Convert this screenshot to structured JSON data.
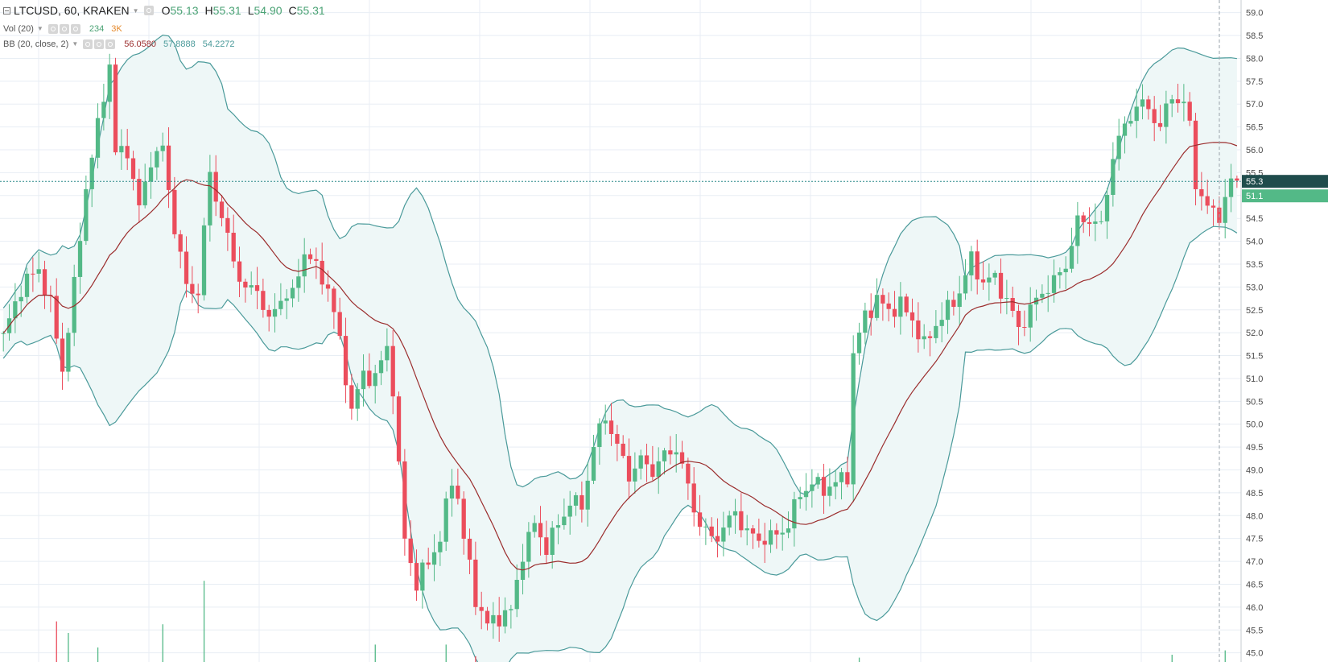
{
  "legend": {
    "symbol": "LTCUSD, 60, KRAKEN",
    "ohlc": [
      {
        "key": "O",
        "value": "55.13"
      },
      {
        "key": "H",
        "value": "55.31"
      },
      {
        "key": "L",
        "value": "54.90"
      },
      {
        "key": "C",
        "value": "55.31"
      }
    ],
    "vol_label": "Vol (20)",
    "vol_values": [
      "234",
      "3K"
    ],
    "bb_label": "BB (20, close, 2)",
    "bb_values": [
      "56.0580",
      "57.8888",
      "54.2272"
    ]
  },
  "colors": {
    "up": "#53b987",
    "down": "#eb4d5c",
    "band": "#4a9a9a",
    "basis": "#9b2d2d",
    "fill": "#eef7f7",
    "grid": "#e8eef4",
    "vol_value": "#4aa274",
    "vol_ma": "#e58a2c",
    "bb_basis_value": "#9b2d2d",
    "bb_band_value": "#4a9a9a"
  },
  "chart_data": {
    "type": "candlestick",
    "symbol": "LTCUSD",
    "interval": "60",
    "exchange": "KRAKEN",
    "y_axis": {
      "side": "right",
      "range": [
        44.8,
        59.1
      ],
      "tick_labels": [
        "59.0",
        "58.5",
        "58.0",
        "57.5",
        "57.0",
        "56.5",
        "56.0",
        "55.5",
        "55.0",
        "54.5",
        "54.0",
        "53.5",
        "53.0",
        "52.5",
        "52.0",
        "51.5",
        "51.0",
        "50.5",
        "50.0",
        "49.5",
        "49.0",
        "48.5",
        "48.0",
        "47.5",
        "47.0",
        "46.5",
        "46.0",
        "45.5",
        "45.0"
      ]
    },
    "last_price": {
      "value": 55.31,
      "label": "55.3"
    },
    "price_line_label": "51.1",
    "grid": true,
    "close_path": [
      [
        0,
        51.9
      ],
      [
        3,
        53.0
      ],
      [
        6,
        53.4
      ],
      [
        8,
        52.6
      ],
      [
        10,
        51.2
      ],
      [
        12,
        53.0
      ],
      [
        14,
        55.2
      ],
      [
        16,
        56.5
      ],
      [
        18,
        57.9
      ],
      [
        19,
        55.9
      ],
      [
        21,
        56.0
      ],
      [
        23,
        54.7
      ],
      [
        25,
        55.8
      ],
      [
        27,
        56.0
      ],
      [
        29,
        54.3
      ],
      [
        31,
        53.0
      ],
      [
        33,
        52.9
      ],
      [
        35,
        55.5
      ],
      [
        37,
        54.5
      ],
      [
        39,
        53.6
      ],
      [
        41,
        52.9
      ],
      [
        43,
        53.0
      ],
      [
        45,
        52.2
      ],
      [
        47,
        52.8
      ],
      [
        49,
        52.8
      ],
      [
        51,
        53.8
      ],
      [
        53,
        53.4
      ],
      [
        55,
        53.0
      ],
      [
        57,
        51.8
      ],
      [
        59,
        50.3
      ],
      [
        61,
        51.1
      ],
      [
        63,
        51.0
      ],
      [
        65,
        51.7
      ],
      [
        66,
        50.8
      ],
      [
        67,
        49.0
      ],
      [
        68,
        47.5
      ],
      [
        70,
        46.5
      ],
      [
        72,
        47.0
      ],
      [
        74,
        47.5
      ],
      [
        76,
        48.8
      ],
      [
        77,
        48.4
      ],
      [
        78,
        47.5
      ],
      [
        80,
        46.2
      ],
      [
        82,
        45.6
      ],
      [
        84,
        45.8
      ],
      [
        86,
        45.9
      ],
      [
        88,
        47.2
      ],
      [
        90,
        47.8
      ],
      [
        92,
        47.3
      ],
      [
        94,
        47.8
      ],
      [
        96,
        48.3
      ],
      [
        98,
        48.2
      ],
      [
        100,
        49.5
      ],
      [
        102,
        50.2
      ],
      [
        104,
        49.5
      ],
      [
        106,
        48.9
      ],
      [
        108,
        49.2
      ],
      [
        110,
        49.0
      ],
      [
        112,
        49.3
      ],
      [
        114,
        49.5
      ],
      [
        116,
        48.6
      ],
      [
        118,
        47.8
      ],
      [
        120,
        47.5
      ],
      [
        122,
        47.7
      ],
      [
        124,
        48.1
      ],
      [
        126,
        47.6
      ],
      [
        128,
        47.5
      ],
      [
        130,
        47.5
      ],
      [
        131,
        47.6
      ],
      [
        133,
        47.8
      ],
      [
        135,
        48.5
      ],
      [
        137,
        48.7
      ],
      [
        139,
        48.6
      ],
      [
        141,
        48.7
      ],
      [
        143,
        48.9
      ],
      [
        144,
        51.5
      ],
      [
        146,
        52.4
      ],
      [
        148,
        52.7
      ],
      [
        150,
        52.5
      ],
      [
        152,
        52.6
      ],
      [
        154,
        52.3
      ],
      [
        156,
        51.7
      ],
      [
        158,
        52.2
      ],
      [
        160,
        52.5
      ],
      [
        162,
        52.9
      ],
      [
        164,
        53.6
      ],
      [
        166,
        53.1
      ],
      [
        168,
        53.2
      ],
      [
        170,
        52.7
      ],
      [
        172,
        52.1
      ],
      [
        174,
        52.5
      ],
      [
        176,
        52.9
      ],
      [
        178,
        53.1
      ],
      [
        180,
        53.5
      ],
      [
        182,
        54.4
      ],
      [
        184,
        54.5
      ],
      [
        186,
        54.3
      ],
      [
        188,
        55.9
      ],
      [
        190,
        56.5
      ],
      [
        192,
        57.0
      ],
      [
        194,
        56.9
      ],
      [
        196,
        56.5
      ],
      [
        198,
        57.2
      ],
      [
        200,
        57.0
      ],
      [
        201,
        56.5
      ],
      [
        202,
        55.3
      ],
      [
        204,
        54.7
      ],
      [
        206,
        54.6
      ],
      [
        207,
        54.9
      ],
      [
        208,
        55.3
      ]
    ],
    "volume": {
      "label": "Vol (20)",
      "value": 234,
      "ma": "3K",
      "spikes": [
        [
          9,
          0.28
        ],
        [
          11,
          0.2
        ],
        [
          16,
          0.1
        ],
        [
          27,
          0.26
        ],
        [
          34,
          0.56
        ],
        [
          63,
          0.12
        ],
        [
          75,
          0.12
        ],
        [
          80,
          0.04
        ],
        [
          145,
          0.03
        ],
        [
          198,
          0.05
        ],
        [
          207,
          0.08
        ]
      ]
    },
    "bollinger": {
      "label": "BB (20, close, 2)",
      "basis": 56.058,
      "upper": 57.8888,
      "lower": 54.2272
    }
  }
}
